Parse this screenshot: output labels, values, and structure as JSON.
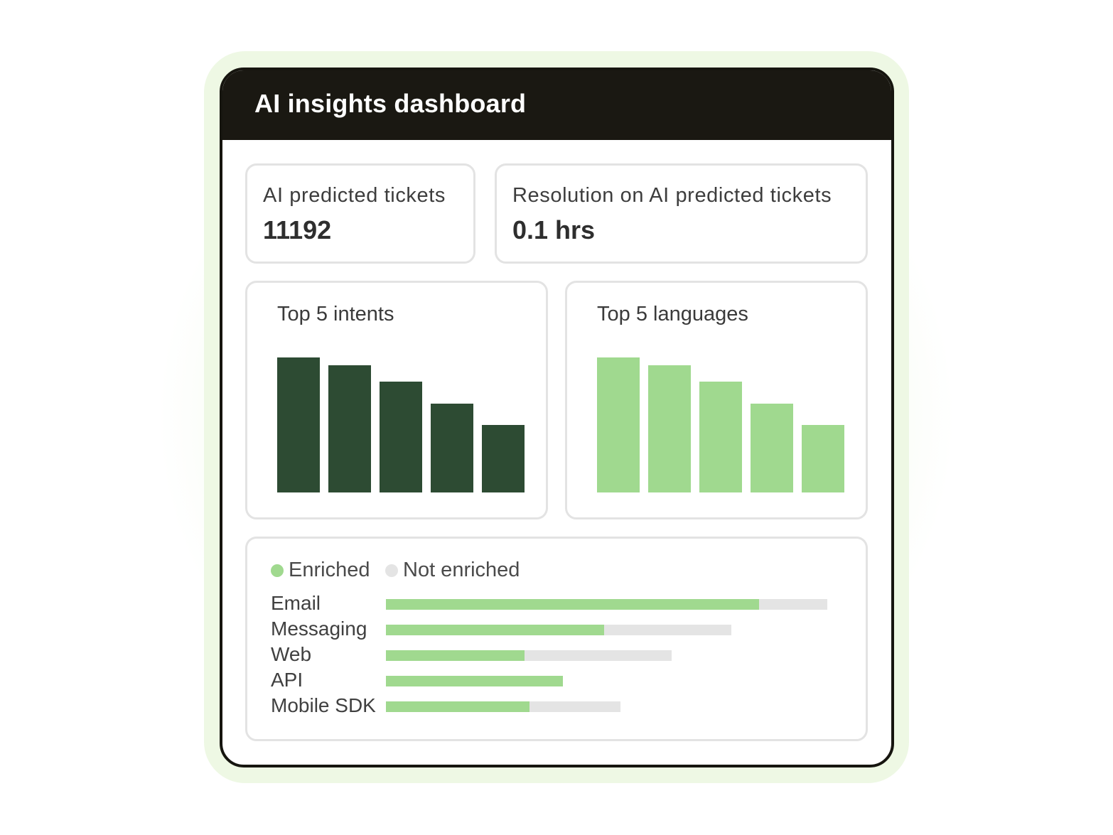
{
  "dashboard": {
    "title": "AI insights dashboard"
  },
  "stats": [
    {
      "label": "AI predicted tickets",
      "value": "11192"
    },
    {
      "label": "Resolution on AI predicted tickets",
      "value": "0.1 hrs"
    }
  ],
  "colors": {
    "intents_bar": "#2d4b33",
    "languages_bar": "#a0d98f",
    "enriched": "#a0d98f",
    "not_enriched": "#e4e4e4",
    "header": "#1a1812"
  },
  "chart_data": [
    {
      "type": "bar",
      "title": "Top 5 intents",
      "categories": [
        "",
        "",
        "",
        "",
        ""
      ],
      "values": [
        100,
        94,
        82,
        66,
        50
      ],
      "ylim": [
        0,
        100
      ]
    },
    {
      "type": "bar",
      "title": "Top 5 languages",
      "categories": [
        "",
        "",
        "",
        "",
        ""
      ],
      "values": [
        100,
        94,
        82,
        66,
        50
      ],
      "ylim": [
        0,
        100
      ]
    },
    {
      "type": "bar",
      "orientation": "horizontal",
      "stacked": true,
      "legend": [
        "Enriched",
        "Not enriched"
      ],
      "legend_position": "top-left",
      "categories": [
        "Email",
        "Messaging",
        "Web",
        "API",
        "Mobile SDK"
      ],
      "series": [
        {
          "name": "Enriched",
          "values": [
            525,
            307,
            195,
            249,
            202
          ]
        },
        {
          "name": "Not enriched",
          "values": [
            96,
            179,
            207,
            0,
            128
          ]
        }
      ]
    }
  ]
}
